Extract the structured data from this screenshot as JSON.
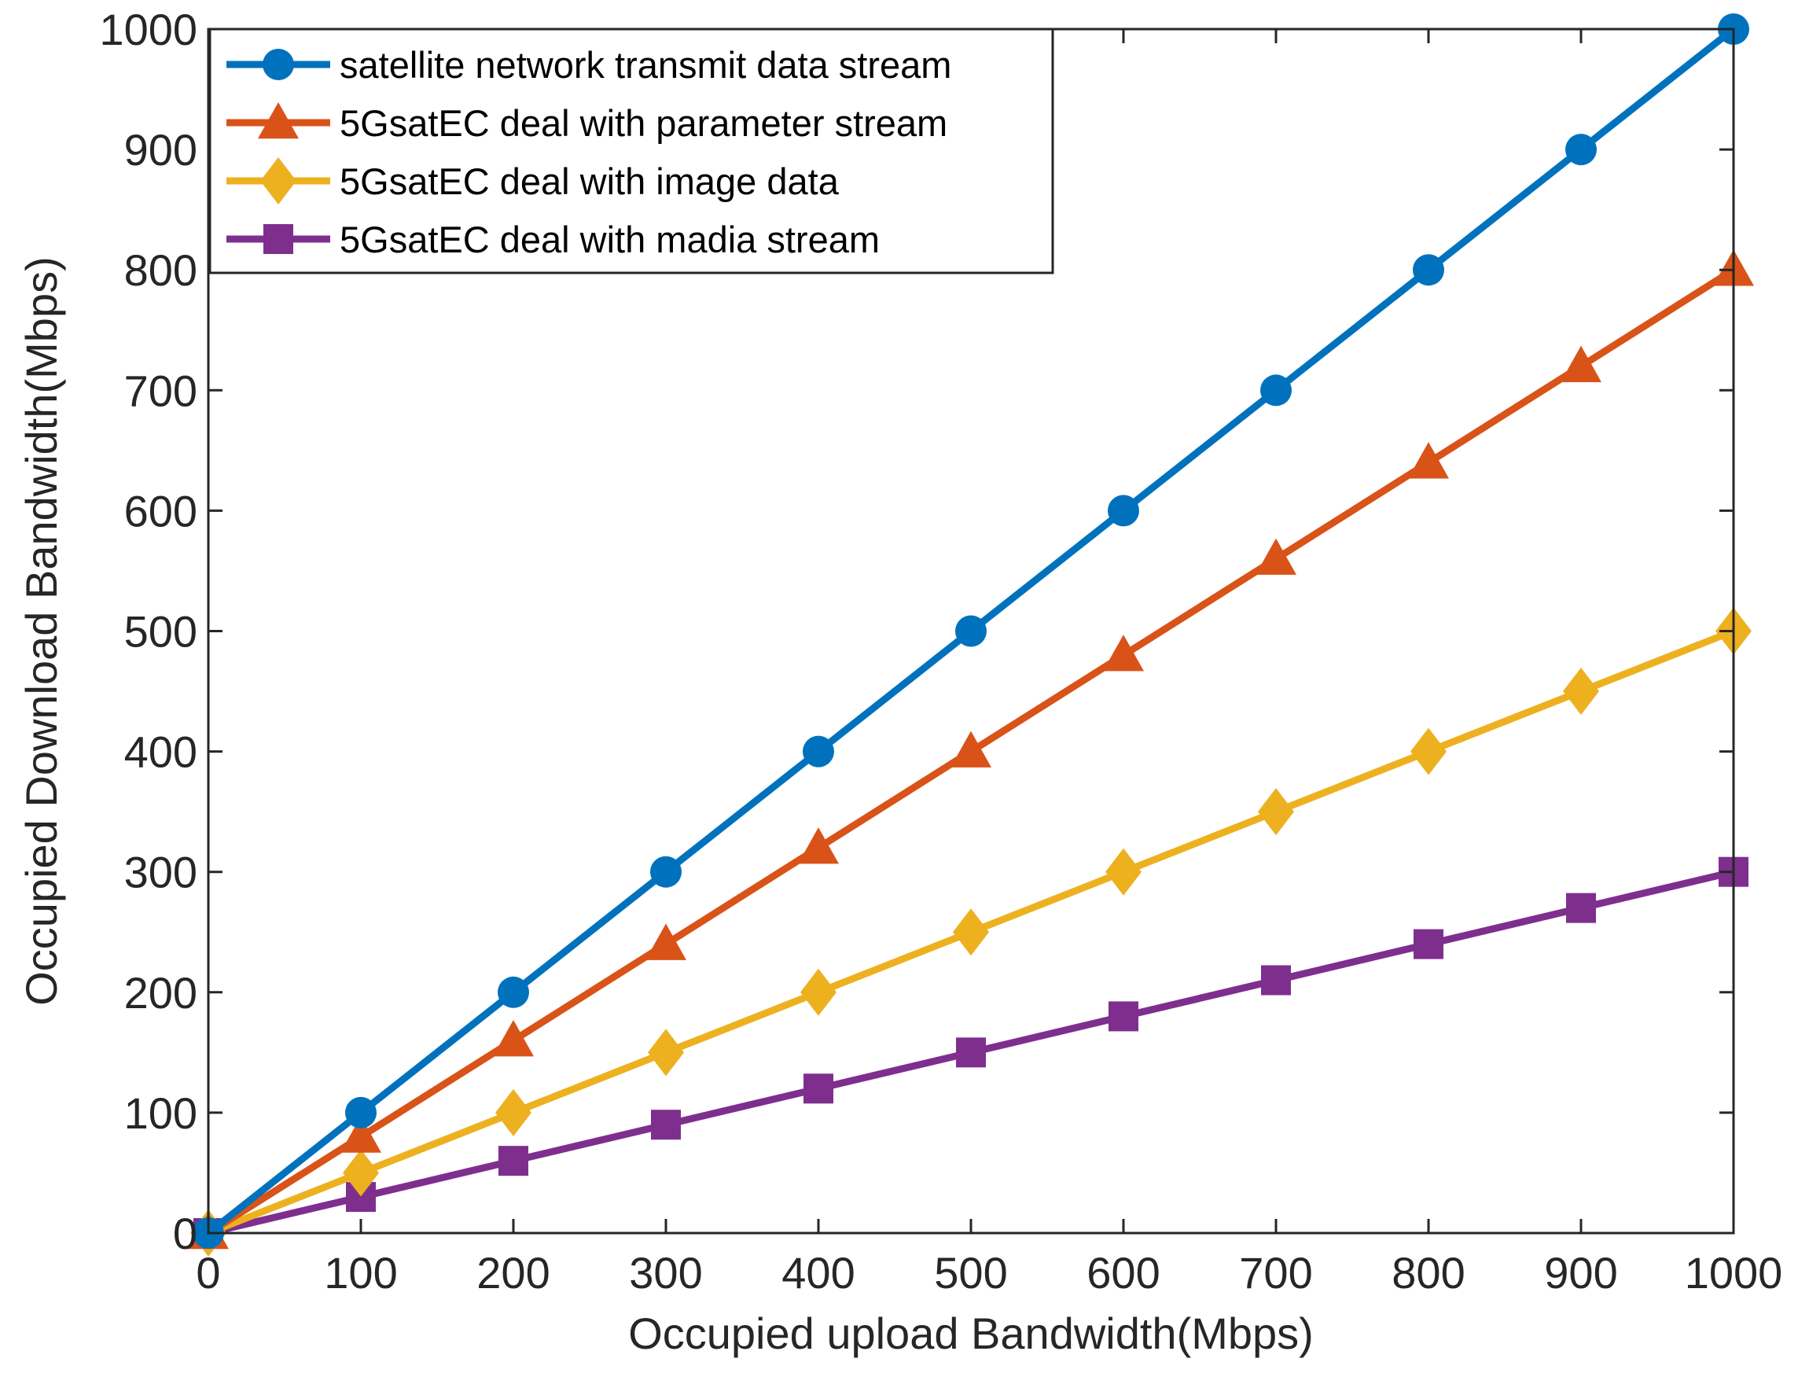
{
  "chart_data": {
    "type": "line",
    "title": "",
    "xlabel": "Occupied upload Bandwidth(Mbps)",
    "ylabel": "Occupied Download Bandwidth(Mbps)",
    "xlim": [
      0,
      1000
    ],
    "ylim": [
      0,
      1000
    ],
    "xticks": [
      0,
      100,
      200,
      300,
      400,
      500,
      600,
      700,
      800,
      900,
      1000
    ],
    "yticks": [
      0,
      100,
      200,
      300,
      400,
      500,
      600,
      700,
      800,
      900,
      1000
    ],
    "grid": false,
    "legend_position": "top-left",
    "x": [
      0,
      100,
      200,
      300,
      400,
      500,
      600,
      700,
      800,
      900,
      1000
    ],
    "series": [
      {
        "name": "satellite network transmit data stream",
        "marker": "circle",
        "color": "#0072BD",
        "values": [
          0,
          100,
          200,
          300,
          400,
          500,
          600,
          700,
          800,
          900,
          1000
        ]
      },
      {
        "name": "5GsatEC deal with parameter stream",
        "marker": "triangle",
        "color": "#D95319",
        "values": [
          0,
          80,
          160,
          240,
          320,
          400,
          480,
          560,
          640,
          720,
          800
        ]
      },
      {
        "name": "5GsatEC deal with image data",
        "marker": "diamond",
        "color": "#EDB120",
        "values": [
          0,
          50,
          100,
          150,
          200,
          250,
          300,
          350,
          400,
          450,
          500
        ]
      },
      {
        "name": "5GsatEC deal with madia stream",
        "marker": "square",
        "color": "#7E2F8E",
        "values": [
          0,
          30,
          60,
          90,
          120,
          150,
          180,
          210,
          240,
          270,
          300
        ]
      }
    ]
  }
}
